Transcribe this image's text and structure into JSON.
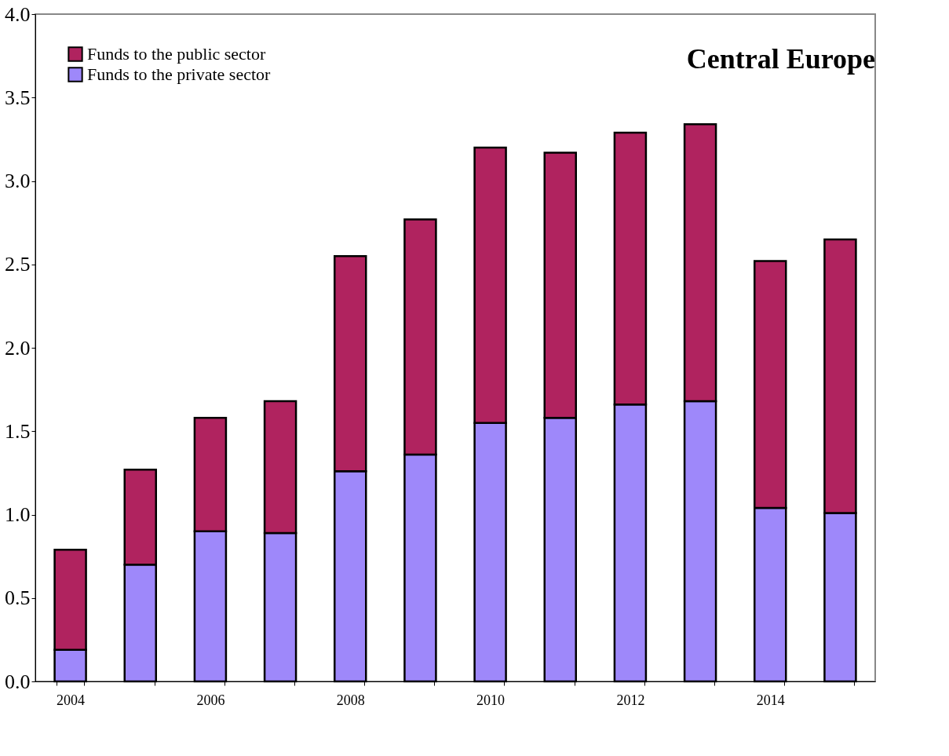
{
  "chart_data": {
    "type": "bar",
    "title": "Central Europe",
    "stacked": true,
    "categories": [
      "2004",
      null,
      "2006",
      null,
      "2008",
      null,
      "2010",
      null,
      "2012",
      null,
      "2014",
      null
    ],
    "series": [
      {
        "name": "Funds to the private sector",
        "color": "#9e88fa",
        "values": [
          0.19,
          0.7,
          0.9,
          0.89,
          1.26,
          1.36,
          1.55,
          1.58,
          1.66,
          1.68,
          1.04,
          1.01
        ]
      },
      {
        "name": "Funds to the public sector",
        "color": "#b0235f",
        "values": [
          0.6,
          0.57,
          0.68,
          0.79,
          1.29,
          1.41,
          1.65,
          1.59,
          1.63,
          1.66,
          1.48,
          1.64
        ]
      }
    ],
    "ylim": [
      0,
      4.0
    ],
    "yticks": [
      {
        "value": 0,
        "label": "0.0"
      },
      {
        "value": 0.5,
        "label": "0.5"
      },
      {
        "value": 1,
        "label": "1.0"
      },
      {
        "value": 1.5,
        "label": "1.5"
      },
      {
        "value": 2,
        "label": "2.0"
      },
      {
        "value": 2.5,
        "label": "2.5"
      },
      {
        "value": 3,
        "label": "3.0"
      },
      {
        "value": 3.5,
        "label": "3.5"
      },
      {
        "value": 4,
        "label": "4.0"
      }
    ],
    "grid": false,
    "legend": "top left"
  }
}
